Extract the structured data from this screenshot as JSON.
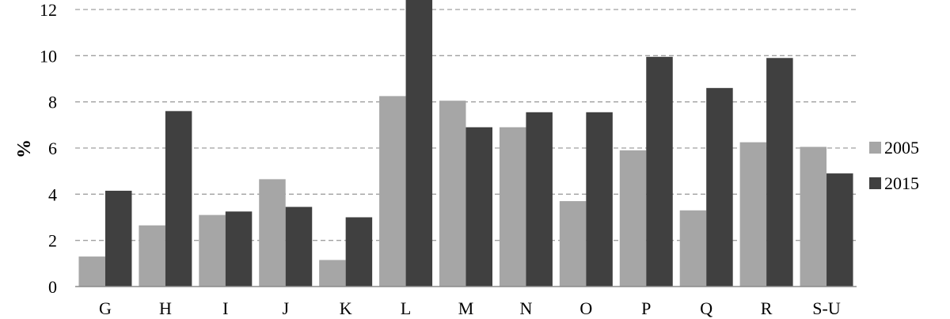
{
  "chart_data": {
    "type": "bar",
    "title": "",
    "xlabel": "",
    "ylabel": "%",
    "ylim": [
      0,
      12
    ],
    "yticks": [
      0,
      2,
      4,
      6,
      8,
      10,
      12
    ],
    "grid": true,
    "legend_position": "right",
    "categories": [
      "G",
      "H",
      "I",
      "J",
      "K",
      "L",
      "M",
      "N",
      "O",
      "P",
      "Q",
      "R",
      "S-U"
    ],
    "series": [
      {
        "name": "2005",
        "color": "#a6a6a6",
        "values": [
          1.3,
          2.65,
          3.1,
          4.65,
          1.15,
          8.25,
          8.05,
          6.9,
          3.7,
          5.9,
          3.3,
          6.25,
          6.05
        ]
      },
      {
        "name": "2015",
        "color": "#404040",
        "values": [
          4.15,
          7.6,
          3.25,
          3.45,
          3.0,
          12.5,
          6.9,
          7.55,
          7.55,
          9.95,
          8.6,
          9.9,
          4.9
        ]
      }
    ]
  }
}
